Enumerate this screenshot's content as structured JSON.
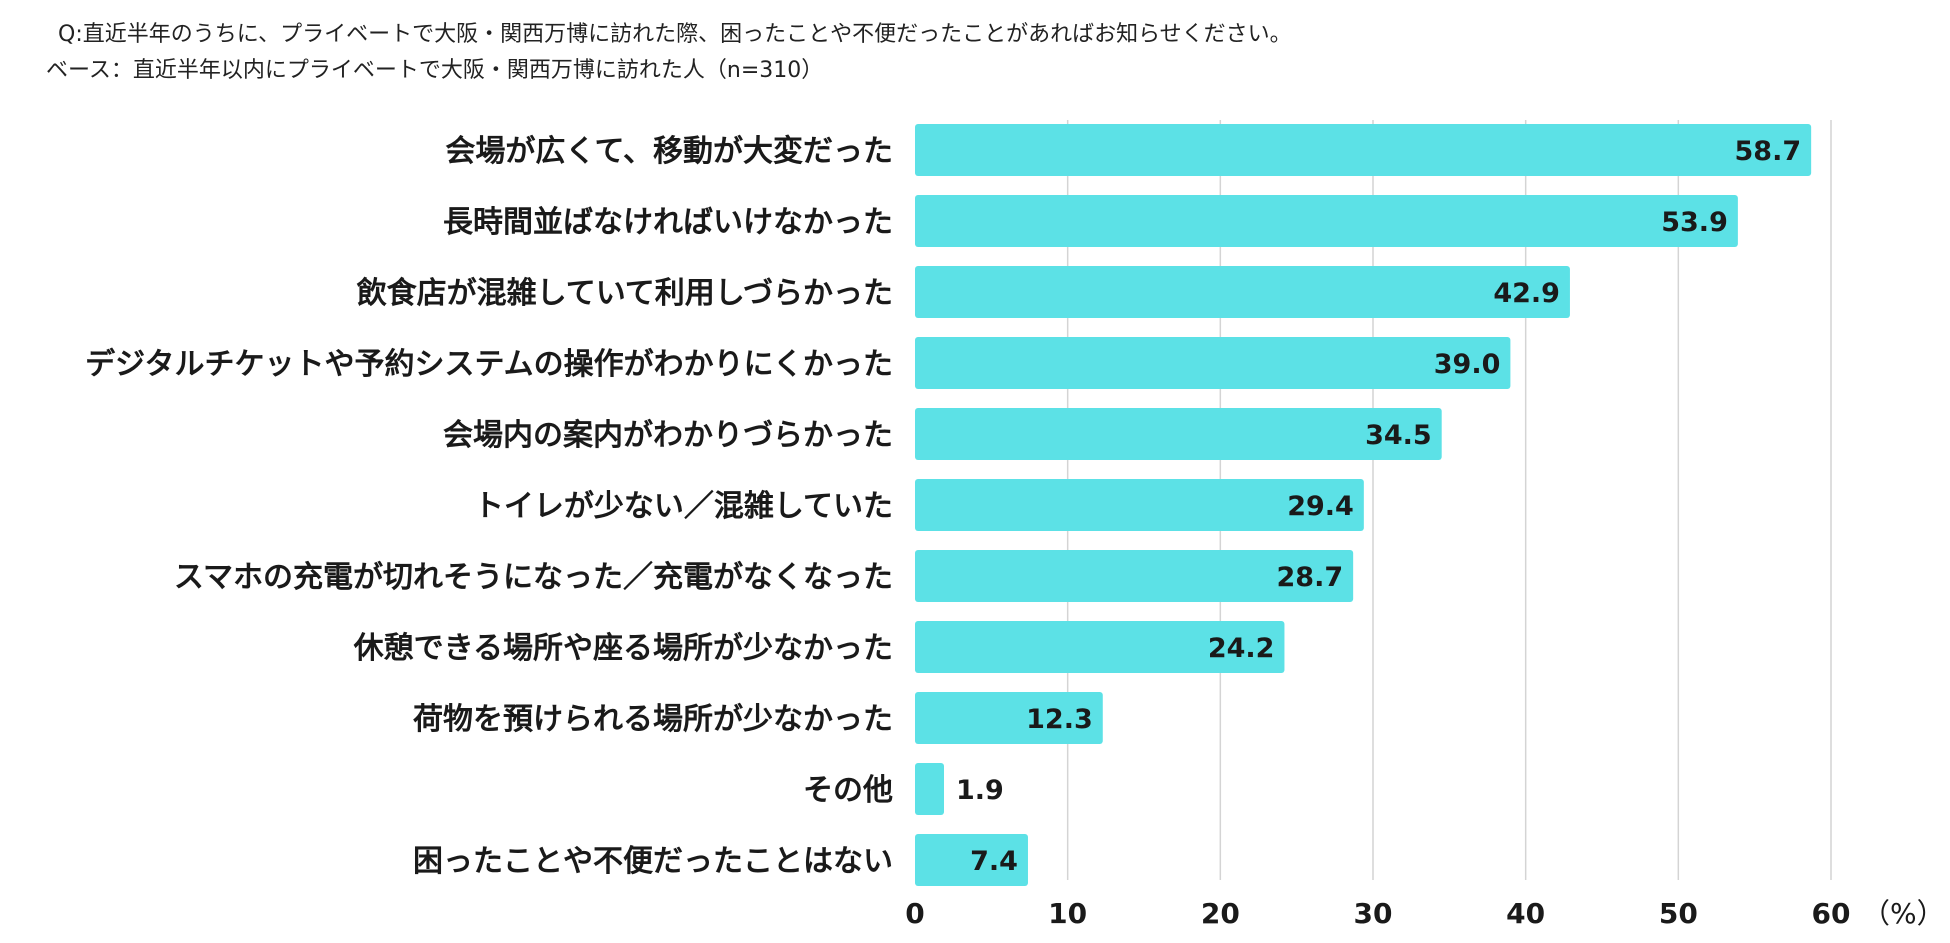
{
  "header": {
    "question": "Q:直近半年のうちに、プライベートで大阪・関西万博に訪れた際、困ったことや不便だったことがあればお知らせください。",
    "base": "ベース：直近半年以内にプライベートで大阪・関西万博に訪れた人（n=310）"
  },
  "chart_data": {
    "type": "bar",
    "orientation": "horizontal",
    "categories": [
      "会場が広くて、移動が大変だった",
      "長時間並ばなければいけなかった",
      "飲食店が混雑していて利用しづらかった",
      "デジタルチケットや予約システムの操作がわかりにくかった",
      "会場内の案内がわかりづらかった",
      "トイレが少ない／混雑していた",
      "スマホの充電が切れそうになった／充電がなくなった",
      "休憩できる場所や座る場所が少なかった",
      "荷物を預けられる場所が少なかった",
      "その他",
      "困ったことや不便だったことはない"
    ],
    "values": [
      58.7,
      53.9,
      42.9,
      39.0,
      34.5,
      29.4,
      28.7,
      24.2,
      12.3,
      1.9,
      7.4
    ],
    "value_labels": [
      "58.7",
      "53.9",
      "42.9",
      "39.0",
      "34.5",
      "29.4",
      "28.7",
      "24.2",
      "12.3",
      "1.9",
      "7.4"
    ],
    "xlim": [
      0,
      60
    ],
    "xticks": [
      "0",
      "10",
      "20",
      "30",
      "40",
      "50",
      "60"
    ],
    "unit": "（%）",
    "grid": true,
    "bar_color": "#5ce1e6",
    "grid_color": "#d4d4d4"
  }
}
